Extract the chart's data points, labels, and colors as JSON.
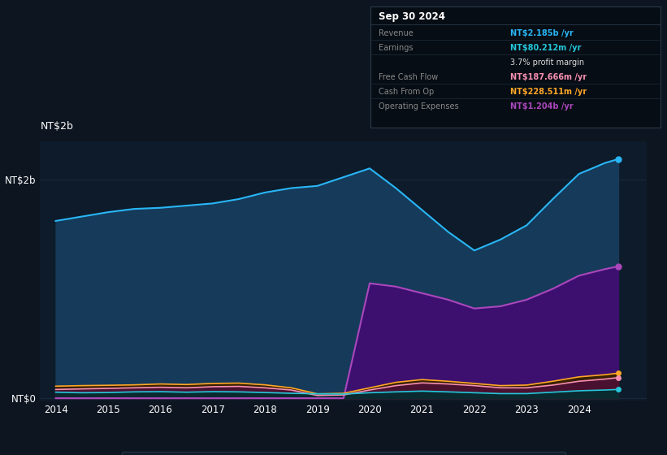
{
  "background_color": "#0d1520",
  "plot_bg_color": "#0d1b2a",
  "chart_bg_color": "#0d1b2a",
  "title": "Sep 30 2024",
  "ylabel": "NT$2b",
  "ylabel_zero": "NT$0",
  "years": [
    2014.0,
    2014.5,
    2015.0,
    2015.5,
    2016.0,
    2016.5,
    2017.0,
    2017.5,
    2018.0,
    2018.5,
    2019.0,
    2019.5,
    2020.0,
    2020.5,
    2021.0,
    2021.5,
    2022.0,
    2022.5,
    2023.0,
    2023.5,
    2024.0,
    2024.5,
    2024.75
  ],
  "revenue": [
    1.62,
    1.66,
    1.7,
    1.73,
    1.74,
    1.76,
    1.78,
    1.82,
    1.88,
    1.92,
    1.94,
    2.02,
    2.1,
    1.92,
    1.72,
    1.52,
    1.35,
    1.45,
    1.58,
    1.82,
    2.05,
    2.15,
    2.185
  ],
  "earnings": [
    0.055,
    0.05,
    0.052,
    0.058,
    0.06,
    0.055,
    0.06,
    0.058,
    0.052,
    0.045,
    0.04,
    0.038,
    0.05,
    0.058,
    0.065,
    0.058,
    0.05,
    0.042,
    0.042,
    0.055,
    0.068,
    0.075,
    0.08
  ],
  "free_cash_flow": [
    0.08,
    0.085,
    0.09,
    0.095,
    0.1,
    0.095,
    0.105,
    0.108,
    0.095,
    0.075,
    0.025,
    0.03,
    0.075,
    0.115,
    0.14,
    0.13,
    0.115,
    0.095,
    0.095,
    0.12,
    0.155,
    0.175,
    0.188
  ],
  "cash_from_op": [
    0.11,
    0.115,
    0.118,
    0.122,
    0.13,
    0.125,
    0.135,
    0.138,
    0.122,
    0.095,
    0.04,
    0.045,
    0.095,
    0.145,
    0.17,
    0.155,
    0.135,
    0.115,
    0.12,
    0.155,
    0.195,
    0.215,
    0.229
  ],
  "op_expenses": [
    0.0,
    0.0,
    0.0,
    0.0,
    0.0,
    0.0,
    0.0,
    0.0,
    0.0,
    0.0,
    0.0,
    0.0,
    1.05,
    1.02,
    0.96,
    0.9,
    0.82,
    0.84,
    0.9,
    1.0,
    1.12,
    1.18,
    1.204
  ],
  "revenue_color": "#29b6f6",
  "earnings_color": "#26c6da",
  "free_cash_flow_color": "#f48fb1",
  "cash_from_op_color": "#ffa726",
  "op_expenses_color": "#ab47bc",
  "revenue_fill": "#163a5a",
  "op_expenses_fill": "#3d1070",
  "earnings_fill": "#0a2a30",
  "fcf_fill": "#4a1030",
  "cfop_fill": "#3a2000",
  "legend_bg": "#131e2d",
  "grid_color": "#1e2d3d",
  "xlim": [
    2013.7,
    2025.3
  ],
  "ylim": [
    -0.02,
    2.35
  ],
  "ytick_positions": [
    0.0,
    2.0
  ],
  "ytick_labels": [
    "NT$0",
    "NT$2b"
  ],
  "xtick_years": [
    2014,
    2015,
    2016,
    2017,
    2018,
    2019,
    2020,
    2021,
    2022,
    2023,
    2024
  ],
  "tooltip_rows": [
    {
      "label": "Revenue",
      "value": "NT$2.185b /yr",
      "color": "#29b6f6"
    },
    {
      "label": "Earnings",
      "value": "NT$80.212m /yr",
      "color": "#26c6da"
    },
    {
      "label": "",
      "value": "3.7% profit margin",
      "color": "#dddddd"
    },
    {
      "label": "Free Cash Flow",
      "value": "NT$187.666m /yr",
      "color": "#f48fb1"
    },
    {
      "label": "Cash From Op",
      "value": "NT$228.511m /yr",
      "color": "#ffa726"
    },
    {
      "label": "Operating Expenses",
      "value": "NT$1.204b /yr",
      "color": "#ab47bc"
    }
  ]
}
